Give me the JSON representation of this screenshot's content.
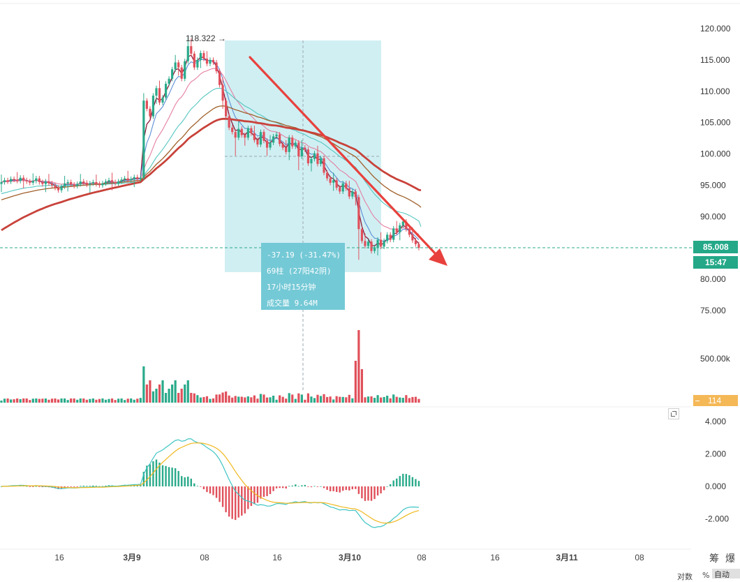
{
  "chart_data": [
    {
      "type": "candlestick",
      "panel": "price",
      "y_ticks": [
        "120.000",
        "115.000",
        "110.000",
        "105.000",
        "100.000",
        "95.000",
        "90.000",
        "85.000",
        "80.000",
        "75.000"
      ],
      "y_tick_values": [
        120,
        115,
        110,
        105,
        100,
        95,
        90,
        85,
        80,
        75
      ],
      "ylim": [
        72.4,
        122.3
      ],
      "x_ticks": [
        "16",
        "3月9",
        "08",
        "16",
        "3月10",
        "08",
        "16",
        "3月11",
        "08"
      ],
      "high_label": "118.322",
      "current_price": "85.008",
      "countdown": "15:47",
      "current_price_value": 85.008,
      "selection": {
        "change": "-37.19 (-31.47%)",
        "bars": "69柱 (27阳42阴)",
        "duration": "17小时15分钟",
        "volume": "成交量 9.64M"
      },
      "close_series": [
        95.5,
        95.8,
        95.6,
        96.0,
        95.9,
        95.7,
        96.2,
        95.8,
        95.6,
        95.4,
        95.7,
        96.1,
        95.5,
        95.2,
        95.6,
        95.3,
        95.0,
        94.6,
        94.2,
        94.8,
        95.3,
        95.5,
        95.1,
        94.9,
        95.2,
        95.6,
        95.4,
        95.1,
        95.3,
        95.5,
        95.2,
        95.0,
        95.3,
        95.6,
        95.8,
        95.5,
        95.3,
        95.6,
        95.9,
        96.1,
        95.8,
        96.0,
        96.3,
        96.0,
        96.2,
        108.5,
        107.2,
        106.0,
        109.3,
        110.5,
        108.2,
        109.0,
        111.2,
        112.0,
        113.5,
        114.6,
        113.8,
        112.0,
        114.8,
        117.2,
        116.0,
        113.8,
        115.0,
        116.1,
        115.2,
        114.4,
        115.0,
        114.6,
        113.2,
        111.0,
        108.5,
        106.0,
        104.2,
        103.5,
        102.6,
        104.0,
        103.0,
        102.6,
        104.1,
        103.3,
        102.2,
        101.5,
        103.5,
        102.1,
        101.0,
        101.8,
        102.8,
        103.1,
        101.6,
        101.0,
        100.3,
        102.6,
        101.2,
        101.8,
        99.6,
        101.0,
        100.7,
        98.5,
        99.2,
        100.1,
        98.4,
        99.3,
        97.0,
        96.1,
        95.4,
        95.8,
        94.6,
        94.0,
        95.3,
        94.5,
        93.2,
        94.0,
        93.1,
        88.0,
        86.1,
        85.3,
        86.0,
        84.5,
        85.1,
        86.3,
        85.2,
        86.1,
        87.1,
        86.3,
        88.1,
        87.5,
        88.6,
        89.2,
        88.0,
        87.1,
        86.2,
        85.6,
        85.008
      ],
      "ma_lines": [
        {
          "color": "#8b1a3a",
          "label": "short MA"
        },
        {
          "color": "#5b8dd6",
          "label": "fast MA"
        },
        {
          "color": "#e47ea0",
          "label": "mid MA"
        },
        {
          "color": "#55c6c0",
          "label": "slow MA"
        },
        {
          "color": "#a0602a",
          "label": "long MA"
        },
        {
          "color": "#c8423a",
          "label": "very long MA"
        }
      ],
      "annotation": "red downward trend arrow from ~115.5 to ~81"
    },
    {
      "type": "bar",
      "panel": "volume",
      "y_ticks": [
        "500.00k"
      ],
      "current_value": "114",
      "note": "volume spikes at the breakout (3月9 08) and at the sharp drop (~3月10 04)"
    },
    {
      "type": "bar+line",
      "panel": "MACD",
      "y_ticks": [
        "4.000",
        "2.000",
        "0.000",
        "-2.000"
      ],
      "y_tick_values": [
        4,
        2,
        0,
        -2
      ],
      "ylim": [
        -3.6,
        4.3
      ]
    }
  ],
  "ui": {
    "right_buttons": [
      "筹",
      "爆"
    ],
    "footer": [
      "对数",
      "%",
      "自动"
    ]
  },
  "colors": {
    "up": "#2aaa8a",
    "down": "#e0505b",
    "selection_fill": "#cdeef2",
    "info_box": "#74c9d6",
    "price_tag": "#24a888",
    "volume_tag": "#f4b857",
    "arrow": "#e8413d"
  }
}
